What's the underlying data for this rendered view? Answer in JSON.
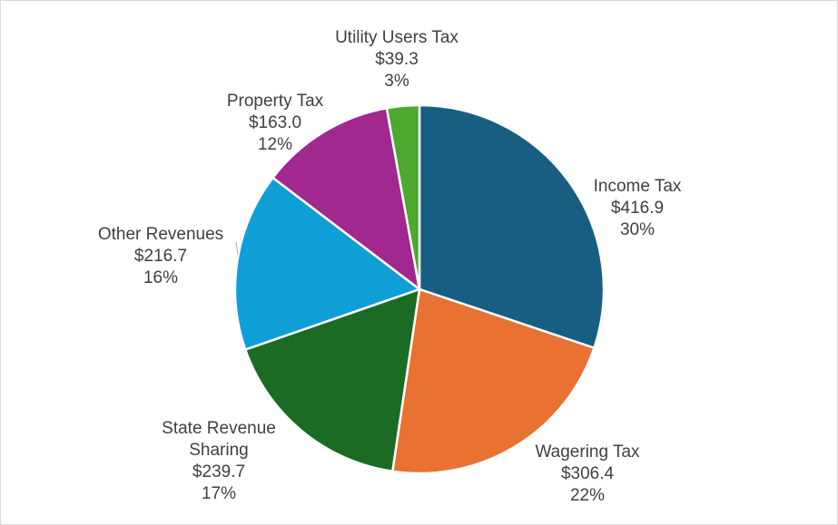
{
  "chart_data": {
    "type": "pie",
    "title": "",
    "start": "top",
    "direction": "clockwise",
    "slices": [
      {
        "label": "Income Tax",
        "value": 416.9,
        "value_text": "$416.9",
        "percent_text": "30%",
        "color": "#175E82"
      },
      {
        "label": "Wagering Tax",
        "value": 306.4,
        "value_text": "$306.4",
        "percent_text": "22%",
        "color": "#E97132"
      },
      {
        "label": "State Revenue Sharing",
        "label_lines": [
          "State Revenue",
          "Sharing"
        ],
        "value": 239.7,
        "value_text": "$239.7",
        "percent_text": "17%",
        "color": "#1B6B24"
      },
      {
        "label": "Other Revenues",
        "value": 216.7,
        "value_text": "$216.7",
        "percent_text": "16%",
        "color": "#0F9FD6"
      },
      {
        "label": "Property Tax",
        "value": 163.0,
        "value_text": "$163.0",
        "percent_text": "12%",
        "color": "#A0288F"
      },
      {
        "label": "Utility Users Tax",
        "value": 39.3,
        "value_text": "$39.3",
        "percent_text": "3%",
        "color": "#4EA72E"
      }
    ]
  }
}
